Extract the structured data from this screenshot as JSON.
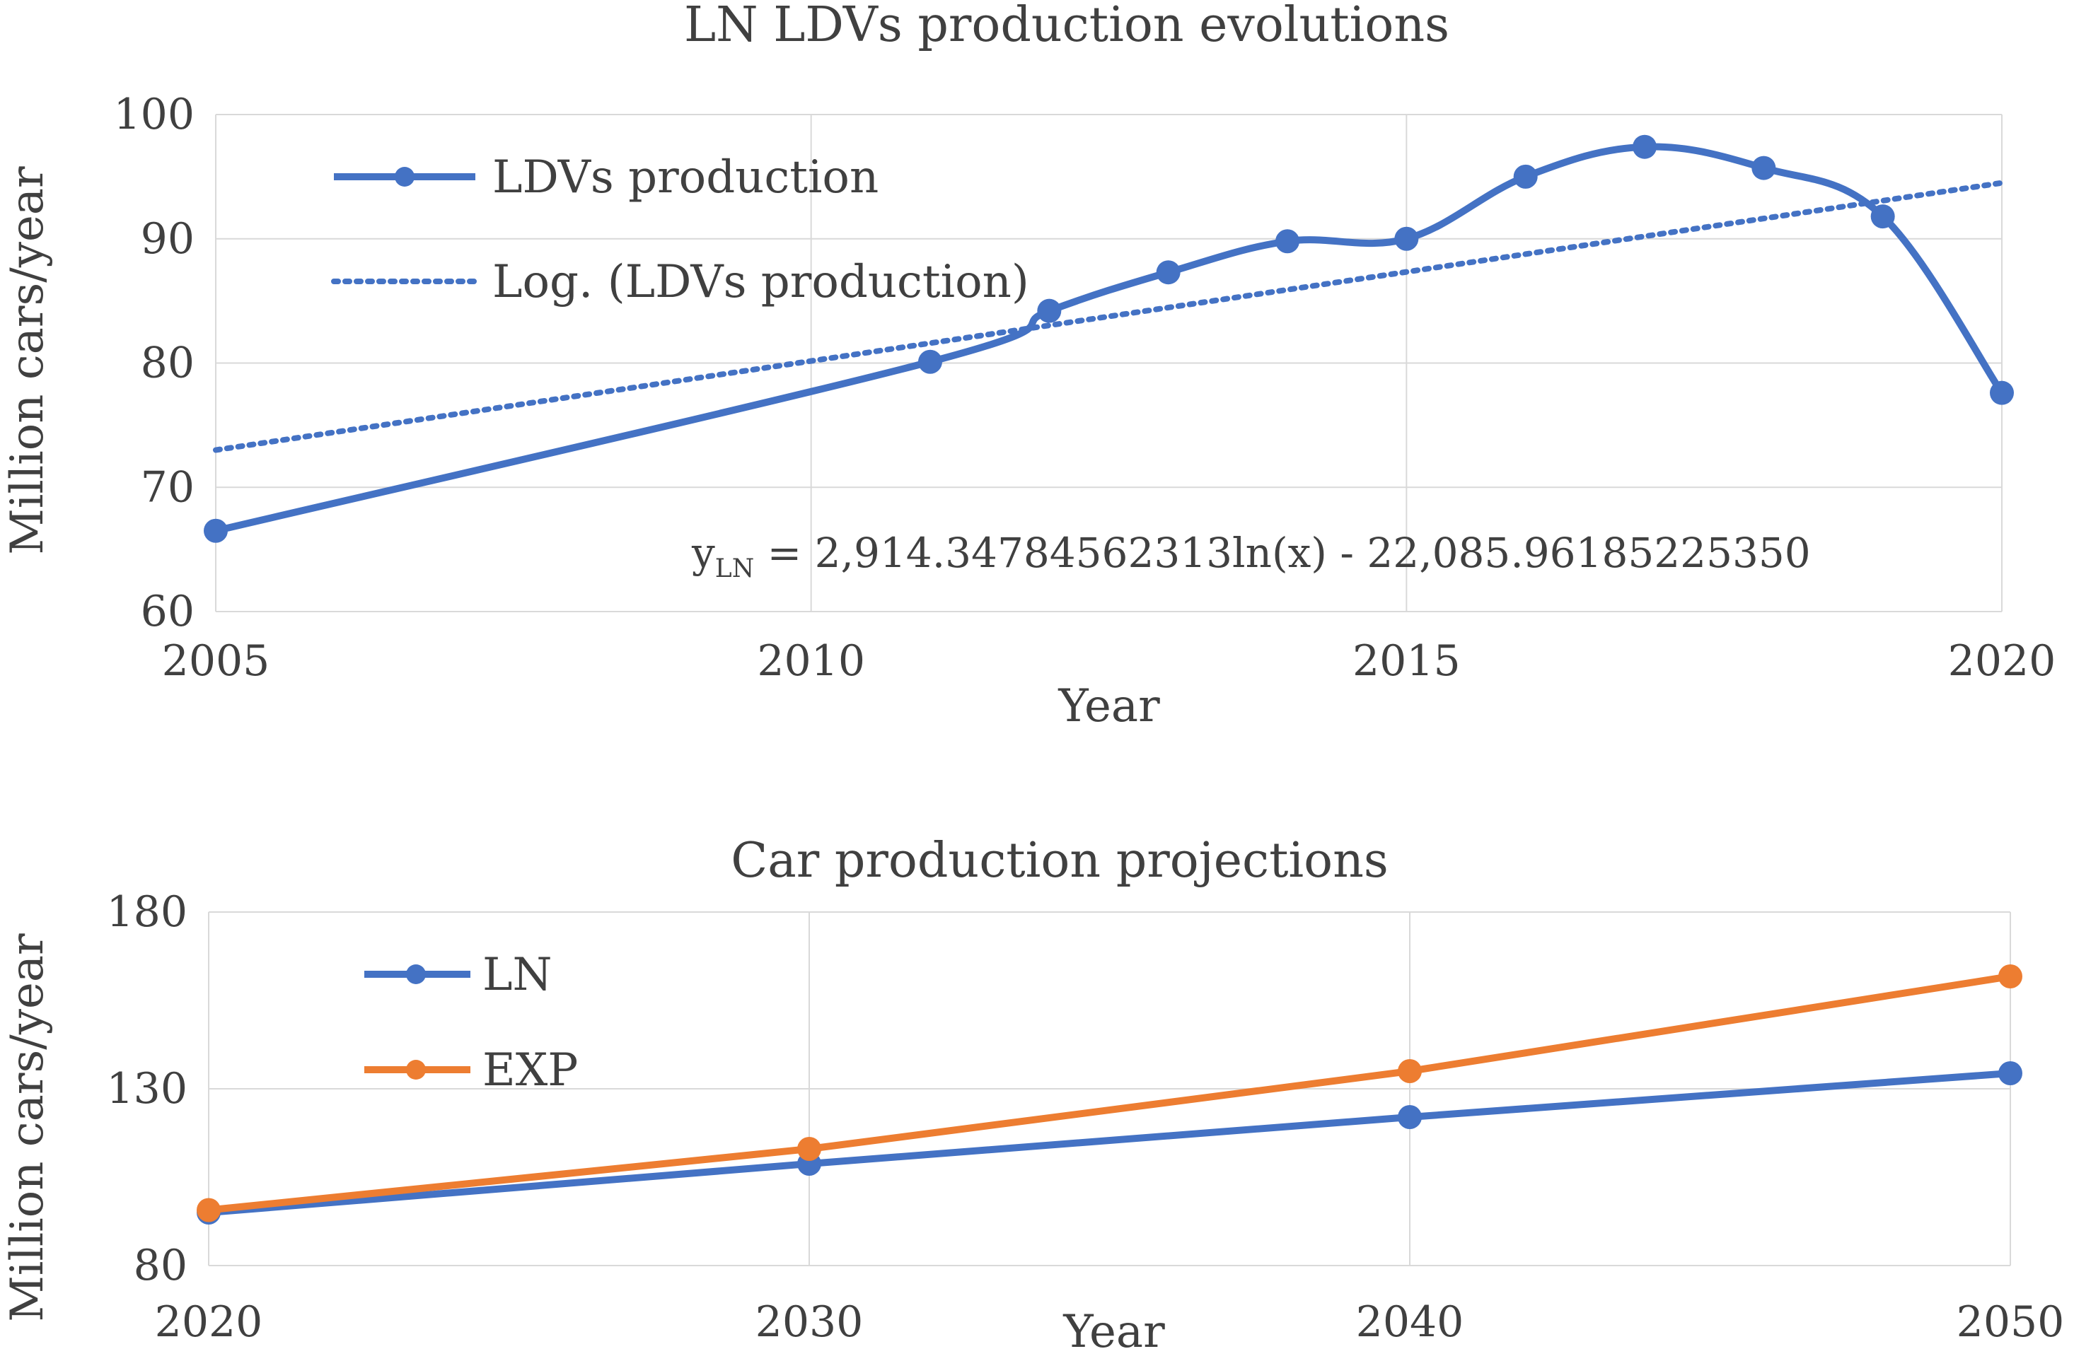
{
  "chart_data": [
    {
      "type": "line",
      "title": "LN LDVs production evolutions",
      "xlabel": "Year",
      "ylabel": "Million cars/year",
      "xlim": [
        2005,
        2020
      ],
      "ylim": [
        60,
        100
      ],
      "x_ticks": [
        "2005",
        "2010",
        "2015",
        "2020"
      ],
      "y_ticks": [
        "60",
        "70",
        "80",
        "90",
        "100"
      ],
      "grid": true,
      "legend_position": "top-left",
      "series": [
        {
          "name": "LDVs production",
          "style": "solid-smooth-markers",
          "color": "#4472C4",
          "x": [
            2005,
            2011,
            2012,
            2013,
            2014,
            2015,
            2016,
            2017,
            2018,
            2019,
            2020
          ],
          "values": [
            66.5,
            80.1,
            84.2,
            87.3,
            89.8,
            90.0,
            95.0,
            97.4,
            95.7,
            91.8,
            77.6
          ]
        },
        {
          "name": "Log. (LDVs production)",
          "style": "dotted",
          "color": "#4472C4",
          "x": [
            2005,
            2020
          ],
          "values": [
            73.0,
            94.5
          ]
        }
      ],
      "annotation": {
        "prefix": "y",
        "subscript": "LN",
        "formula": " = 2,914.34784562313ln(x) - 22,085.96185225350"
      }
    },
    {
      "type": "line",
      "title": "Car production projections",
      "xlabel": "Year",
      "ylabel": "Million cars/year",
      "xlim": [
        2020,
        2050
      ],
      "ylim": [
        80,
        180
      ],
      "x_ticks": [
        "2020",
        "2030",
        "2040",
        "2050"
      ],
      "y_ticks": [
        "80",
        "130",
        "180"
      ],
      "grid": true,
      "legend_position": "top-left",
      "series": [
        {
          "name": "LN",
          "style": "solid-markers",
          "color": "#4472C4",
          "x": [
            2020,
            2030,
            2040,
            2050
          ],
          "values": [
            95.0,
            108.8,
            122.0,
            134.4
          ]
        },
        {
          "name": "EXP",
          "style": "solid-markers",
          "color": "#ED7D31",
          "x": [
            2020,
            2030,
            2040,
            2050
          ],
          "values": [
            95.7,
            113.0,
            135.0,
            161.8
          ]
        }
      ]
    }
  ]
}
